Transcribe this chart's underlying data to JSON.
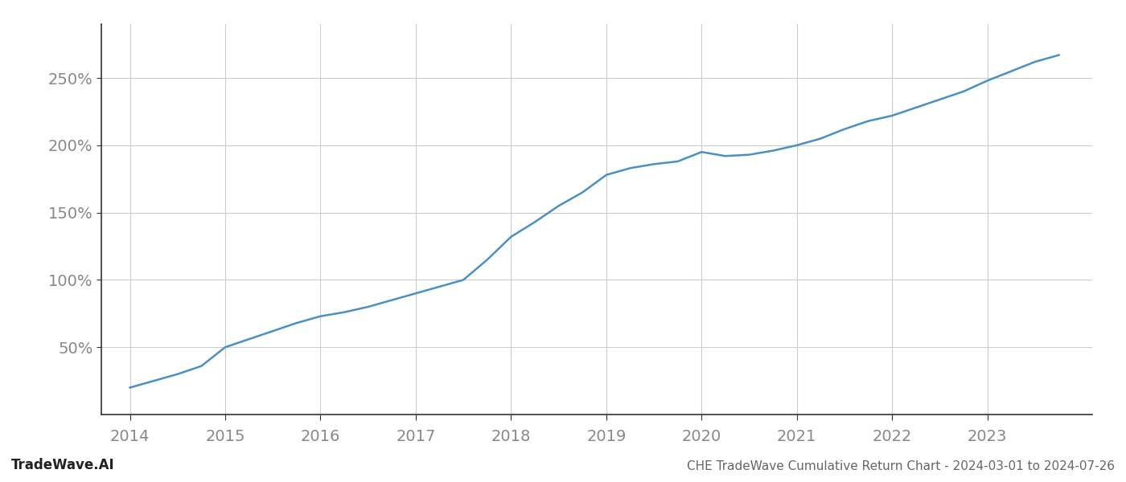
{
  "title": "CHE TradeWave Cumulative Return Chart - 2024-03-01 to 2024-07-26",
  "watermark": "TradeWave.AI",
  "line_color": "#4a90c4",
  "background_color": "#ffffff",
  "grid_color": "#cccccc",
  "x_years": [
    2014,
    2015,
    2016,
    2017,
    2018,
    2019,
    2020,
    2021,
    2022,
    2023
  ],
  "data_points": [
    [
      2014.0,
      20
    ],
    [
      2014.25,
      25
    ],
    [
      2014.5,
      30
    ],
    [
      2014.75,
      36
    ],
    [
      2015.0,
      50
    ],
    [
      2015.25,
      56
    ],
    [
      2015.5,
      62
    ],
    [
      2015.75,
      68
    ],
    [
      2016.0,
      73
    ],
    [
      2016.25,
      76
    ],
    [
      2016.5,
      80
    ],
    [
      2016.75,
      85
    ],
    [
      2017.0,
      90
    ],
    [
      2017.25,
      95
    ],
    [
      2017.5,
      100
    ],
    [
      2017.75,
      115
    ],
    [
      2018.0,
      132
    ],
    [
      2018.25,
      143
    ],
    [
      2018.5,
      155
    ],
    [
      2018.75,
      165
    ],
    [
      2019.0,
      178
    ],
    [
      2019.25,
      183
    ],
    [
      2019.5,
      186
    ],
    [
      2019.75,
      188
    ],
    [
      2020.0,
      195
    ],
    [
      2020.25,
      192
    ],
    [
      2020.5,
      193
    ],
    [
      2020.75,
      196
    ],
    [
      2021.0,
      200
    ],
    [
      2021.25,
      205
    ],
    [
      2021.5,
      212
    ],
    [
      2021.75,
      218
    ],
    [
      2022.0,
      222
    ],
    [
      2022.25,
      228
    ],
    [
      2022.5,
      234
    ],
    [
      2022.75,
      240
    ],
    [
      2023.0,
      248
    ],
    [
      2023.25,
      255
    ],
    [
      2023.5,
      262
    ],
    [
      2023.75,
      267
    ]
  ],
  "ylim": [
    0,
    290
  ],
  "yticks": [
    50,
    100,
    150,
    200,
    250
  ],
  "xlim": [
    2013.7,
    2024.1
  ],
  "line_width": 1.8,
  "footer_fontsize": 12,
  "title_fontsize": 11,
  "tick_fontsize": 14,
  "spine_color": "#333333"
}
